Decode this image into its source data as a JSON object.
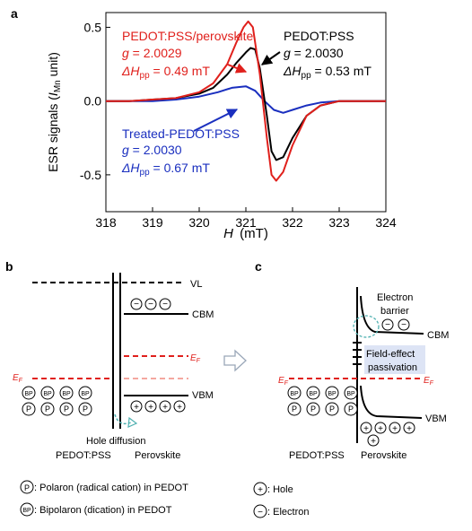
{
  "panel_labels": {
    "a": "a",
    "b": "b",
    "c": "c"
  },
  "chart_data": {
    "type": "line",
    "xlabel_var": "H",
    "xlabel_unit": "(mT)",
    "ylabel_main": "ESR signals (",
    "ylabel_var": "I",
    "ylabel_sub": "Mn",
    "ylabel_tail": " unit)",
    "xlim": [
      318,
      324
    ],
    "ylim": [
      -0.75,
      0.6
    ],
    "xticks": [
      318,
      319,
      320,
      321,
      322,
      323,
      324
    ],
    "yticks": [
      0.5,
      0.0,
      -0.5
    ],
    "ytick_labels": [
      "0.5",
      "0.0",
      "-0.5"
    ],
    "series": [
      {
        "name": "PEDOT:PSS",
        "color": "#000000",
        "x": [
          318.0,
          318.5,
          319.0,
          319.5,
          320.0,
          320.3,
          320.6,
          320.8,
          321.0,
          321.1,
          321.2,
          321.3,
          321.45,
          321.55,
          321.65,
          321.8,
          322.0,
          322.3,
          322.6,
          323.0,
          323.5,
          324.0
        ],
        "y": [
          0.0,
          0.0,
          0.01,
          0.02,
          0.05,
          0.09,
          0.18,
          0.26,
          0.33,
          0.36,
          0.35,
          0.22,
          -0.1,
          -0.34,
          -0.4,
          -0.38,
          -0.25,
          -0.1,
          -0.03,
          0.0,
          0.0,
          0.0
        ]
      },
      {
        "name": "PEDOT:PSS/perovskite",
        "color": "#e0201c",
        "x": [
          318.0,
          318.5,
          319.0,
          319.5,
          320.0,
          320.3,
          320.6,
          320.8,
          320.95,
          321.05,
          321.15,
          321.3,
          321.45,
          321.55,
          321.65,
          321.8,
          322.0,
          322.3,
          322.6,
          323.0,
          323.5,
          324.0
        ],
        "y": [
          0.0,
          0.0,
          0.01,
          0.02,
          0.06,
          0.12,
          0.25,
          0.4,
          0.5,
          0.54,
          0.5,
          0.18,
          -0.25,
          -0.5,
          -0.54,
          -0.48,
          -0.3,
          -0.1,
          -0.03,
          0.0,
          0.0,
          0.0
        ]
      },
      {
        "name": "Treated-PEDOT:PSS",
        "color": "#1a2fbf",
        "x": [
          318.0,
          318.5,
          319.0,
          319.5,
          320.0,
          320.4,
          320.7,
          321.0,
          321.2,
          321.4,
          321.6,
          321.8,
          322.0,
          322.3,
          322.6,
          323.0,
          323.5,
          324.0
        ],
        "y": [
          0.0,
          0.0,
          0.0,
          0.01,
          0.03,
          0.06,
          0.09,
          0.1,
          0.07,
          0.0,
          -0.06,
          -0.08,
          -0.06,
          -0.03,
          -0.01,
          0.0,
          0.0,
          0.0
        ]
      }
    ],
    "annotations": {
      "red": {
        "name": "PEDOT:PSS/perovskite",
        "g_label": "g",
        "g_value": " = 2.0029",
        "dh_label": "ΔH",
        "dh_sub": "pp",
        "dh_value": " =  0.49 mT"
      },
      "black": {
        "name": "PEDOT:PSS",
        "g_label": "g",
        "g_value": " = 2.0030",
        "dh_label": "ΔH",
        "dh_sub": "pp",
        "dh_value": " =  0.53 mT"
      },
      "blue": {
        "name": "Treated-PEDOT:PSS",
        "g_label": "g",
        "g_value": " = 2.0030",
        "dh_label": "ΔH",
        "dh_sub": "pp",
        "dh_value": " =  0.67 mT"
      }
    }
  },
  "diagram_b": {
    "vl": "VL",
    "cbm": "CBM",
    "ef_right": "E",
    "ef_sub": "F",
    "ef_left": "E",
    "vbm": "VBM",
    "hole_diffusion": "Hole diffusion",
    "left_label": "PEDOT:PSS",
    "right_label": "Perovskite",
    "bp": "BP",
    "p": "P"
  },
  "diagram_c": {
    "electron_barrier_1": "Electron",
    "electron_barrier_2": "barrier",
    "cbm": "CBM",
    "field_effect_1": "Field-effect",
    "field_effect_2": "passivation",
    "ef": "E",
    "ef_sub": "F",
    "vbm": "VBM",
    "left_label": "PEDOT:PSS",
    "right_label": "Perovskite",
    "bp": "BP",
    "p": "P"
  },
  "legend": {
    "polaron_symbol": "P",
    "polaron_text": ": Polaron (radical cation) in PEDOT",
    "bipolaron_symbol": "BP",
    "bipolaron_text": ": Bipolaron (dication) in PEDOT",
    "hole_symbol": "+",
    "hole_text": ": Hole",
    "electron_symbol": "−",
    "electron_text": ": Electron"
  },
  "colors": {
    "red": "#e0201c",
    "black": "#000000",
    "blue": "#1a2fbf",
    "lightred": "#f4a8a0",
    "passivation_bg": "#dde4f5",
    "arrow_grey": "#9aa7b8",
    "teal": "#4fb0b0"
  }
}
